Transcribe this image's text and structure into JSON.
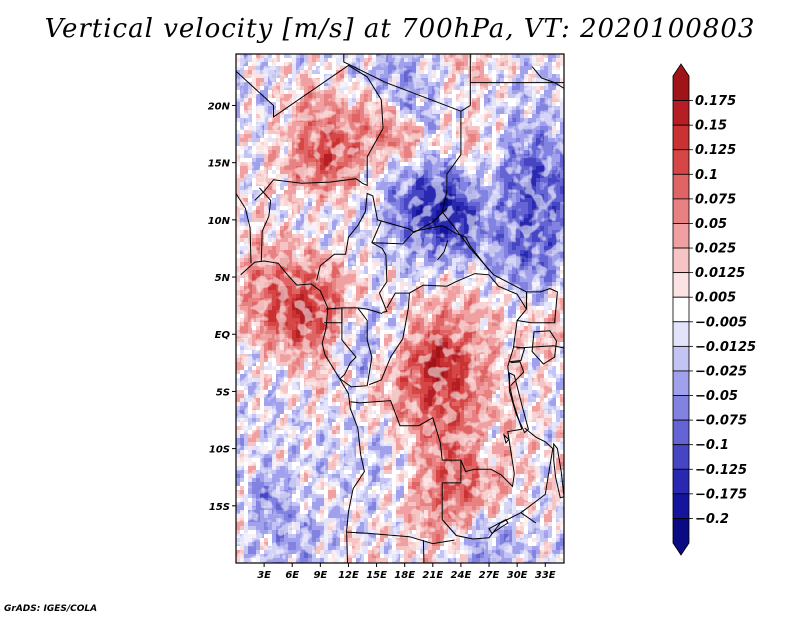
{
  "chart_data": {
    "type": "heatmap",
    "title": "Vertical velocity [m/s] at 700hPa, VT: 2020100803",
    "variable": "Vertical velocity",
    "units": "m/s",
    "level": "700hPa",
    "valid_time": "2020100803",
    "x_axis": {
      "ticks": [
        3,
        6,
        9,
        12,
        15,
        18,
        21,
        24,
        27,
        30,
        33
      ],
      "tick_labels": [
        "3E",
        "6E",
        "9E",
        "12E",
        "15E",
        "18E",
        "21E",
        "24E",
        "27E",
        "30E",
        "33E"
      ],
      "range": [
        0,
        35
      ]
    },
    "y_axis": {
      "ticks": [
        20,
        15,
        10,
        5,
        0,
        -5,
        -10,
        -15
      ],
      "tick_labels": [
        "20N",
        "15N",
        "10N",
        "5N",
        "EQ",
        "5S",
        "10S",
        "15S"
      ],
      "range": [
        -20,
        24.5
      ]
    },
    "colorbar": {
      "levels": [
        "0.175",
        "0.15",
        "0.125",
        "0.1",
        "0.075",
        "0.05",
        "0.025",
        "0.0125",
        "0.005",
        "−0.005",
        "−0.0125",
        "−0.025",
        "−0.05",
        "−0.075",
        "−0.1",
        "−0.125",
        "−0.175",
        "−0.2"
      ],
      "colors": [
        "#a01418",
        "#b41e24",
        "#c83232",
        "#d64646",
        "#e06464",
        "#e88282",
        "#f0a0a0",
        "#f6c4c4",
        "#fbe3e3",
        "#ffffff",
        "#e3e3fb",
        "#c4c4f4",
        "#a0a0ec",
        "#8282e0",
        "#6464d4",
        "#4646c4",
        "#2828b0",
        "#14149c",
        "#0a0a82"
      ]
    }
  },
  "footer": {
    "credit": "GrADS: IGES/COLA"
  }
}
